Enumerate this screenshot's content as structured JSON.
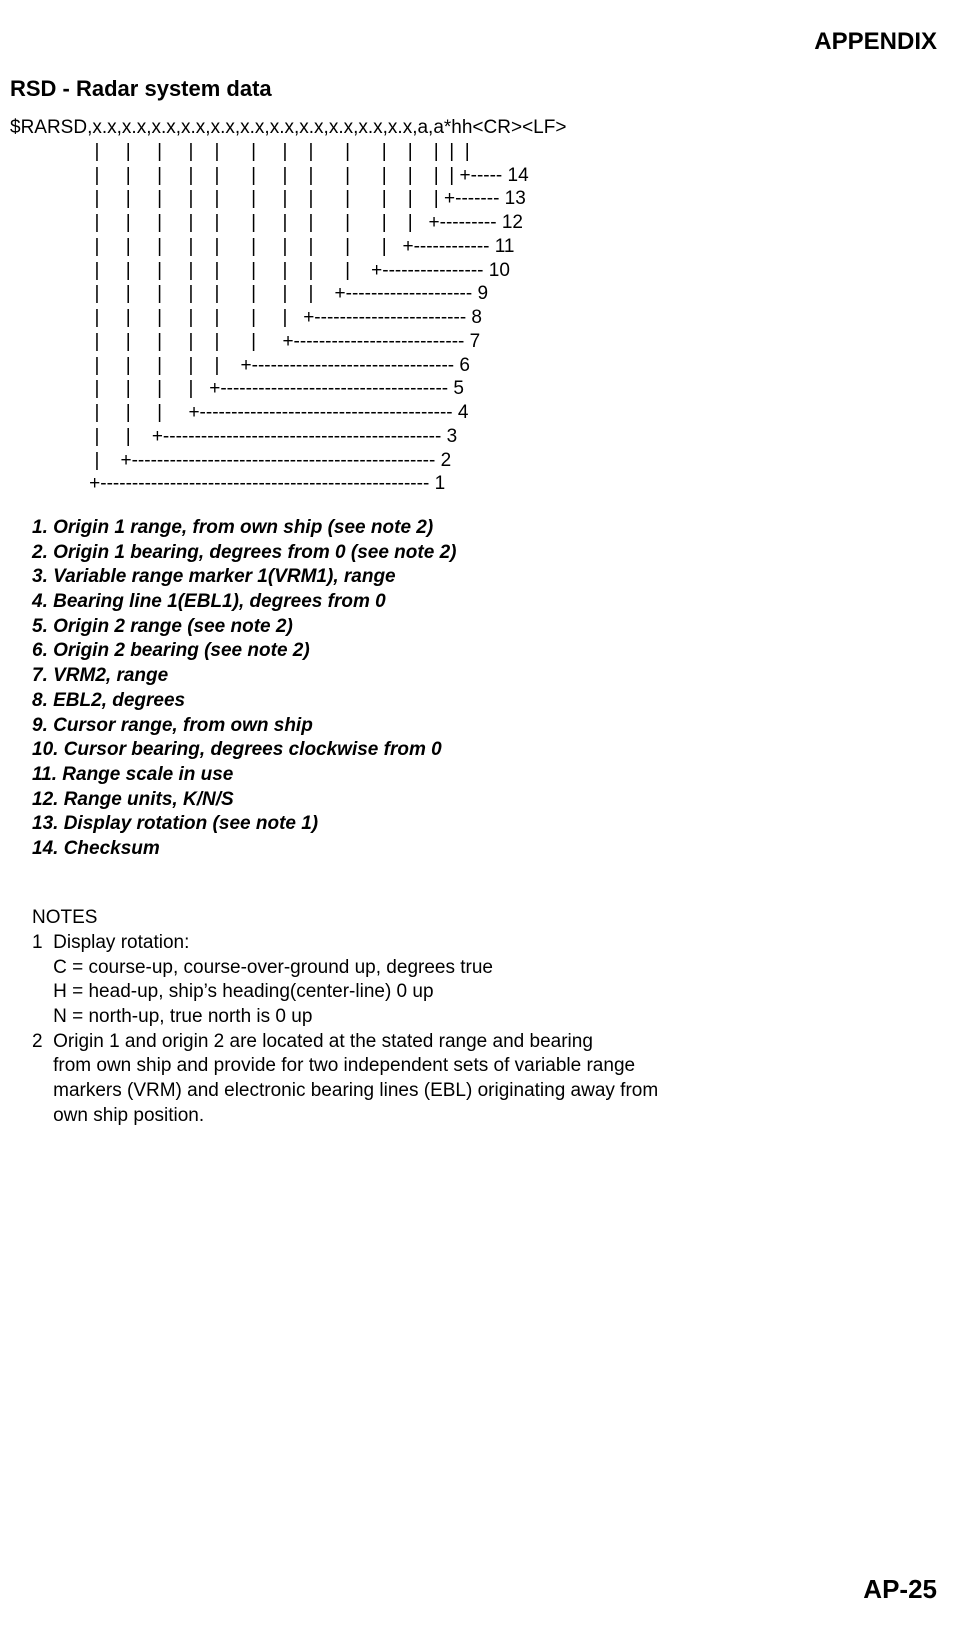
{
  "header": {
    "appendix": "APPENDIX"
  },
  "title": "RSD - Radar system data",
  "sentence": {
    "raw": "$RARSD,x.x,x.x,x.x,x.x,x.x,x.x,x.x,x.x,x.x,x.x,x.x,a,a*hh<CR><LF>\n                |     |     |     |    |      |     |    |      |      |    |    |  |  |\n                |     |     |     |    |      |     |    |      |      |    |    |  | +----- 14\n                |     |     |     |    |      |     |    |      |      |    |    | +------- 13\n                |     |     |     |    |      |     |    |      |      |    |   +--------- 12\n                |     |     |     |    |      |     |    |      |      |   +------------ 11\n                |     |     |     |    |      |     |    |      |    +---------------- 10\n                |     |     |     |    |      |     |    |    +-------------------- 9\n                |     |     |     |    |      |     |   +------------------------ 8\n                |     |     |     |    |      |     +--------------------------- 7\n                |     |     |     |    |    +-------------------------------- 6\n                |     |     |     |   +------------------------------------ 5\n                |     |     |     +---------------------------------------- 4\n                |     |    +-------------------------------------------- 3\n                |    +------------------------------------------------ 2\n               +---------------------------------------------------- 1"
  },
  "fields": {
    "f1": "1. Origin 1 range, from own ship (see note 2)",
    "f2": "2. Origin 1 bearing, degrees from 0 (see note 2)",
    "f3": "3. Variable range marker 1(VRM1), range",
    "f4": "4. Bearing line 1(EBL1), degrees from 0",
    "f5": "5. Origin 2 range (see note 2)",
    "f6": "6. Origin 2 bearing (see note 2)",
    "f7": "7. VRM2, range",
    "f8": "8. EBL2, degrees",
    "f9": "9. Cursor range, from own ship",
    "f10": "10. Cursor bearing, degrees clockwise from 0",
    "f11": "11. Range scale in use",
    "f12": "12. Range units, K/N/S",
    "f13": "13. Display rotation (see note 1)",
    "f14": "14. Checksum"
  },
  "notes": {
    "title": "NOTES",
    "n1": "1  Display rotation:",
    "n1c": "    C = course-up, course-over-ground up, degrees true",
    "n1h": "    H = head-up, ship’s heading(center-line) 0 up",
    "n1n": "    N = north-up, true north is 0 up",
    "n2a": "2  Origin 1 and origin 2 are located at the stated range and bearing",
    "n2b": "    from own ship and provide for two independent sets of variable range",
    "n2c": "    markers (VRM) and electronic bearing lines (EBL) originating away from",
    "n2d": "    own ship position."
  },
  "footer": {
    "page": "AP-25"
  }
}
